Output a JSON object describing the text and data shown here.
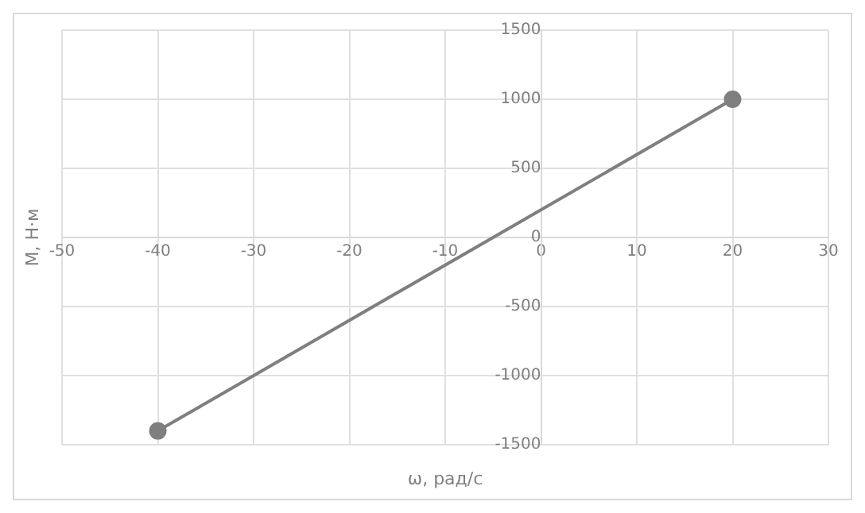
{
  "chart_data": {
    "type": "scatter",
    "xlabel": "ω, рад/с",
    "ylabel": "M, Н·м",
    "series": [
      {
        "type": "line",
        "color": "#7f7f7f",
        "x": [
          -40,
          20
        ],
        "values": [
          -1400,
          1000
        ]
      }
    ],
    "xlim": [
      -50,
      30
    ],
    "xticks": [
      -50,
      -40,
      -30,
      -20,
      -10,
      0,
      10,
      20,
      30
    ],
    "ylim": [
      -1500,
      1500
    ],
    "yticks": [
      -1500,
      -1000,
      -500,
      0,
      500,
      1000,
      1500
    ],
    "grid": true,
    "legend": false,
    "marker": "circle",
    "line_style": "solid"
  }
}
